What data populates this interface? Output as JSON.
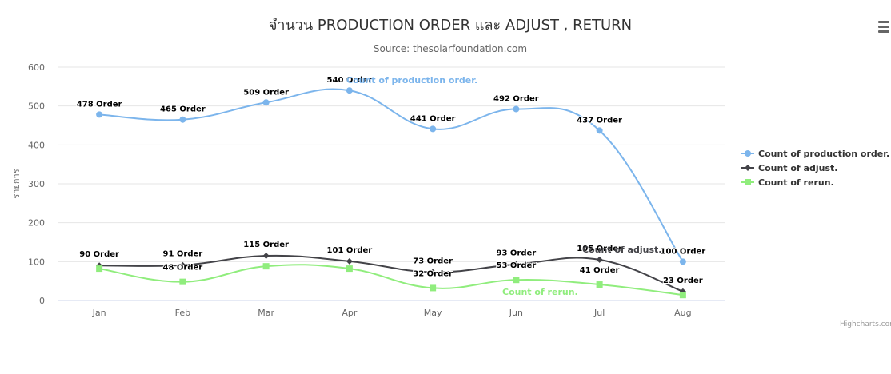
{
  "chart_data": {
    "type": "line",
    "title": "จำนวน PRODUCTION ORDER และ ADJUST , RETURN",
    "subtitle": "Source: thesolarfoundation.com",
    "ylabel": "รายการ",
    "xlabel": "",
    "categories": [
      "Jan",
      "Feb",
      "Mar",
      "Apr",
      "May",
      "Jun",
      "Jul",
      "Aug"
    ],
    "ylim": [
      0,
      600
    ],
    "yticks": [
      0,
      100,
      200,
      300,
      400,
      500,
      600
    ],
    "grid": true,
    "legend_position": "right",
    "series": [
      {
        "name": "Count of production order.",
        "color": "#7cb5ec",
        "marker": "circle",
        "values": [
          478,
          465,
          509,
          540,
          441,
          492,
          437,
          100
        ],
        "labels": [
          "478 Order",
          "465 Order",
          "509 Order",
          "540 Order",
          "441 Order",
          "492 Order",
          "437 Order",
          "100 Order"
        ]
      },
      {
        "name": "Count of adjust.",
        "color": "#434348",
        "marker": "diamond",
        "values": [
          90,
          91,
          115,
          101,
          73,
          93,
          105,
          23
        ],
        "labels": [
          "90 Order",
          "91 Order",
          "115 Order",
          "101 Order",
          "73 Order",
          "93 Order",
          "105 Order",
          "23 Order"
        ]
      },
      {
        "name": "Count of rerun.",
        "color": "#90ed7d",
        "marker": "square",
        "values": [
          82,
          48,
          88,
          82,
          32,
          53,
          41,
          14
        ],
        "labels": [
          "",
          "48 Order",
          "",
          "",
          "32 Order",
          "53 Order",
          "41 Order",
          ""
        ]
      }
    ],
    "series_annotations": [
      "Count of production order.",
      "Count of adjust.",
      "Count of rerun."
    ],
    "credits": "Highcharts.com"
  }
}
